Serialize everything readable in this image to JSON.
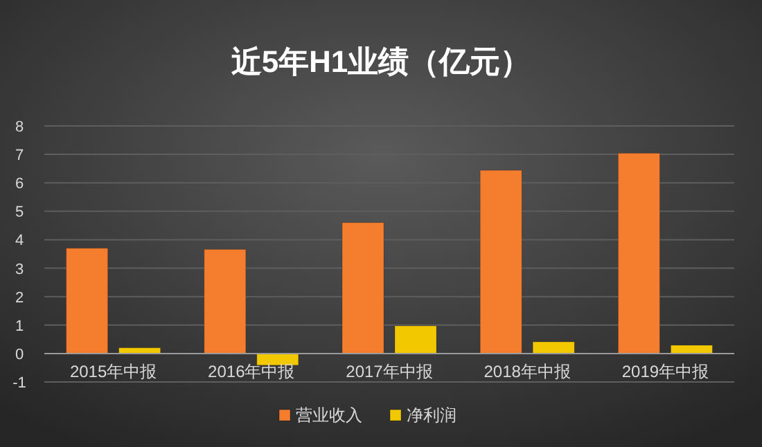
{
  "chart_data": {
    "type": "bar",
    "title": "近5年H1业绩（亿元）",
    "categories": [
      "2015年中报",
      "2016年中报",
      "2017年中报",
      "2018年中报",
      "2019年中报"
    ],
    "series": [
      {
        "name": "营业收入",
        "color": "#f57e2e",
        "values": [
          3.7,
          3.66,
          4.6,
          6.44,
          7.04
        ]
      },
      {
        "name": "净利润",
        "color": "#f2c800",
        "values": [
          0.2,
          -0.41,
          0.97,
          0.41,
          0.29
        ]
      }
    ],
    "ylim": [
      -1,
      8
    ],
    "yticks": [
      -1,
      0,
      1,
      2,
      3,
      4,
      5,
      6,
      7,
      8
    ],
    "grid": "y",
    "legend": "bottom"
  }
}
